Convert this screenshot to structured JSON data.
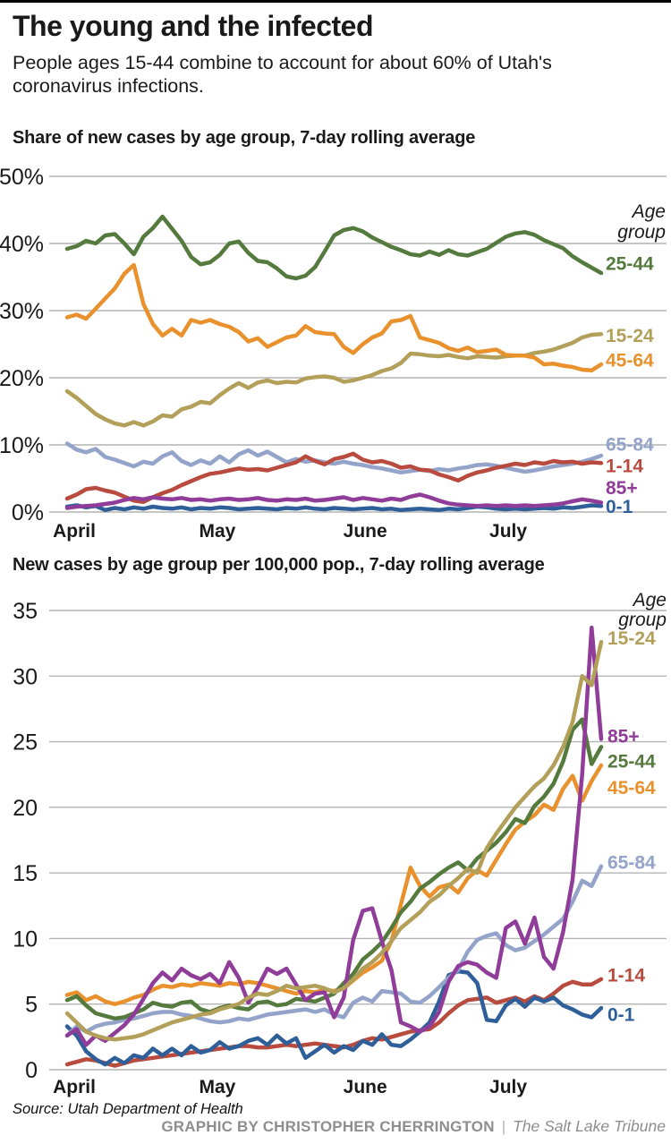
{
  "page": {
    "title": "The young and the infected",
    "subtitle": "People ages 15-44 combine to account for about 60% of Utah's\ncoronavirus infections.",
    "colors": {
      "grid": "#b4b4b4",
      "text": "#1a1a1a",
      "top_rule": "#000000",
      "credit_gray": "#8e8e8e"
    }
  },
  "footer": {
    "source": "Source: Utah Department of Health",
    "credit": "GRAPHIC BY CHRISTOPHER CHERRINGTON",
    "separator": "|",
    "publication": "The Salt Lake Tribune"
  },
  "chart_data": [
    {
      "id": "share",
      "type": "line",
      "title": "Share of new cases by age group, 7-day rolling average",
      "legend_title": "Age group",
      "legend_position": "right",
      "grid": true,
      "ylim": [
        0,
        50
      ],
      "y_ticks": [
        50,
        40,
        30,
        20,
        10,
        0
      ],
      "y_tick_labels": [
        "50%",
        "40%",
        "30%",
        "20%",
        "10%",
        "0%"
      ],
      "x_ticks": [
        "April",
        "May",
        "June",
        "July"
      ],
      "x_tick_days": [
        0,
        30,
        61,
        91
      ],
      "x_total_days": 112,
      "series": [
        {
          "name": "0-1",
          "color": "#2f5f99",
          "label_at": 0.8,
          "values": [
            0.8,
            1.0,
            0.7,
            0.9,
            0.3,
            0.6,
            0.4,
            0.7,
            0.5,
            0.8,
            0.6,
            0.5,
            0.7,
            0.4,
            0.6,
            0.5,
            0.7,
            0.6,
            0.4,
            0.5,
            0.6,
            0.5,
            0.4,
            0.6,
            0.5,
            0.7,
            0.5,
            0.4,
            0.6,
            0.5,
            0.4,
            0.5,
            0.6,
            0.4,
            0.5,
            0.3,
            0.4,
            0.5,
            0.4,
            0.3,
            0.5,
            0.4,
            0.6,
            0.8,
            0.7,
            0.5,
            0.4,
            0.5,
            0.4,
            0.5,
            0.6,
            0.5,
            0.7,
            0.6,
            0.8,
            1.0,
            0.9
          ]
        },
        {
          "name": "65-84",
          "color": "#93a3c9",
          "label_at": 10.1,
          "values": [
            10.2,
            9.3,
            8.9,
            9.4,
            8.2,
            7.8,
            7.3,
            6.8,
            7.5,
            7.2,
            8.3,
            8.9,
            7.6,
            7.0,
            7.7,
            7.2,
            8.3,
            7.4,
            8.6,
            9.2,
            8.4,
            9.0,
            8.2,
            7.4,
            7.9,
            7.5,
            7.7,
            7.4,
            7.2,
            7.5,
            7.2,
            7.0,
            6.7,
            6.5,
            6.2,
            5.9,
            6.1,
            6.3,
            6.1,
            6.4,
            6.2,
            6.5,
            6.7,
            7.0,
            7.1,
            6.9,
            6.6,
            6.3,
            6.0,
            6.2,
            6.5,
            6.8,
            7.0,
            7.2,
            7.5,
            7.9,
            8.4
          ]
        },
        {
          "name": "1-14",
          "color": "#b84a3e",
          "label_at": 6.9,
          "values": [
            2.0,
            2.6,
            3.4,
            3.6,
            3.2,
            2.9,
            2.3,
            1.7,
            1.5,
            2.2,
            2.8,
            3.3,
            4.0,
            4.6,
            5.2,
            5.7,
            5.9,
            6.2,
            6.5,
            6.3,
            6.4,
            6.2,
            6.6,
            7.0,
            7.4,
            8.3,
            7.6,
            7.1,
            7.9,
            8.2,
            8.7,
            7.8,
            7.4,
            7.6,
            7.2,
            6.6,
            6.8,
            6.3,
            6.2,
            5.6,
            5.2,
            4.7,
            5.4,
            5.9,
            6.2,
            6.6,
            6.9,
            7.2,
            7.0,
            7.4,
            7.2,
            7.6,
            7.4,
            7.5,
            7.2,
            7.4,
            7.3
          ]
        },
        {
          "name": "85+",
          "color": "#903d9a",
          "label_at": 3.6,
          "values": [
            0.6,
            0.8,
            0.9,
            1.0,
            1.2,
            1.4,
            1.8,
            2.1,
            1.9,
            2.2,
            2.0,
            1.9,
            2.1,
            1.8,
            1.9,
            1.7,
            1.9,
            2.0,
            1.8,
            1.9,
            2.1,
            1.8,
            1.7,
            1.9,
            1.8,
            2.0,
            1.7,
            1.8,
            2.0,
            2.2,
            1.8,
            2.1,
            1.9,
            1.7,
            2.0,
            1.8,
            2.3,
            2.6,
            2.2,
            1.7,
            1.3,
            1.1,
            1.0,
            0.9,
            1.0,
            0.9,
            1.0,
            0.9,
            1.0,
            0.9,
            1.0,
            1.1,
            1.3,
            1.6,
            1.9,
            1.7,
            1.4
          ]
        },
        {
          "name": "15-24",
          "color": "#b2a05a",
          "label_at": 26.3,
          "values": [
            18.0,
            17.0,
            15.8,
            14.6,
            13.8,
            13.2,
            12.9,
            13.4,
            12.9,
            13.5,
            14.4,
            14.2,
            15.3,
            15.7,
            16.4,
            16.2,
            17.4,
            18.4,
            19.2,
            18.5,
            19.3,
            19.6,
            19.2,
            19.4,
            19.3,
            19.9,
            20.1,
            20.2,
            20.0,
            19.4,
            19.6,
            20.0,
            20.4,
            21.0,
            21.4,
            22.2,
            23.6,
            23.5,
            23.3,
            23.2,
            23.4,
            23.1,
            22.9,
            23.2,
            23.1,
            23.0,
            23.2,
            23.3,
            23.3,
            23.7,
            23.9,
            24.2,
            24.7,
            25.2,
            26.0,
            26.4,
            26.5
          ]
        },
        {
          "name": "45-64",
          "color": "#e8912d",
          "label_at": 22.6,
          "values": [
            29.0,
            29.4,
            28.8,
            30.3,
            31.8,
            33.3,
            35.5,
            36.8,
            31.0,
            28.0,
            26.3,
            27.3,
            26.3,
            28.6,
            28.2,
            28.6,
            28.0,
            27.6,
            26.8,
            25.4,
            25.9,
            24.6,
            25.3,
            26.0,
            26.3,
            27.7,
            26.8,
            26.6,
            26.5,
            24.6,
            23.7,
            25.0,
            26.0,
            26.6,
            28.4,
            28.6,
            29.2,
            26.0,
            25.6,
            25.2,
            24.4,
            24.0,
            24.5,
            23.8,
            24.0,
            24.2,
            23.4,
            23.3,
            23.3,
            23.0,
            22.0,
            22.1,
            21.8,
            21.6,
            21.2,
            21.1,
            22.0
          ]
        },
        {
          "name": "25-44",
          "color": "#557a3e",
          "label_at": 37.0,
          "values": [
            39.2,
            39.6,
            40.4,
            40.0,
            41.2,
            41.4,
            40.0,
            38.4,
            41.0,
            42.3,
            44.0,
            42.2,
            40.4,
            38.0,
            36.9,
            37.2,
            38.3,
            40.0,
            40.3,
            38.6,
            37.4,
            37.2,
            36.3,
            35.1,
            34.8,
            35.2,
            36.5,
            38.8,
            41.2,
            42.0,
            42.3,
            41.8,
            40.9,
            40.2,
            39.5,
            39.0,
            38.4,
            38.2,
            38.8,
            38.3,
            39.0,
            38.4,
            38.2,
            38.7,
            39.2,
            40.1,
            41.0,
            41.5,
            41.7,
            41.3,
            40.5,
            39.9,
            39.3,
            38.1,
            37.2,
            36.4,
            35.6
          ]
        }
      ]
    },
    {
      "id": "rate",
      "type": "line",
      "title": "New cases by age group per 100,000 pop., 7-day rolling average",
      "legend_title": "Age group",
      "legend_position": "right",
      "grid": true,
      "ylim": [
        0,
        35
      ],
      "y_ticks": [
        35,
        30,
        25,
        20,
        15,
        10,
        5,
        0
      ],
      "y_tick_labels": [
        "35",
        "30",
        "25",
        "20",
        "15",
        "10",
        "5",
        "0"
      ],
      "x_ticks": [
        "April",
        "May",
        "June",
        "July"
      ],
      "x_tick_days": [
        0,
        30,
        61,
        91
      ],
      "x_total_days": 112,
      "series": [
        {
          "name": "1-14",
          "color": "#b84a3e",
          "label_at": 7.2,
          "values": [
            0.4,
            0.6,
            0.8,
            0.7,
            0.5,
            0.3,
            0.5,
            0.7,
            0.8,
            0.9,
            1.0,
            1.1,
            1.2,
            1.3,
            1.4,
            1.5,
            1.6,
            1.7,
            1.8,
            1.8,
            1.7,
            1.7,
            1.8,
            1.9,
            1.8,
            1.9,
            2.0,
            1.9,
            1.8,
            1.7,
            1.9,
            2.2,
            2.4,
            2.3,
            2.5,
            2.7,
            2.9,
            3.0,
            3.1,
            3.6,
            4.3,
            4.9,
            5.3,
            5.4,
            5.5,
            5.1,
            5.3,
            5.5,
            5.2,
            5.6,
            5.3,
            5.8,
            6.4,
            6.7,
            6.5,
            6.5,
            6.9
          ]
        },
        {
          "name": "0-1",
          "color": "#2f5f99",
          "label_at": 4.2,
          "values": [
            3.3,
            2.6,
            1.4,
            0.8,
            0.4,
            0.9,
            0.5,
            1.1,
            0.9,
            1.6,
            1.1,
            1.6,
            1.1,
            1.8,
            1.3,
            1.5,
            2.1,
            1.6,
            1.8,
            2.2,
            2.4,
            1.9,
            2.6,
            2.0,
            2.4,
            0.9,
            1.4,
            1.9,
            1.3,
            1.8,
            1.5,
            2.2,
            1.9,
            2.7,
            1.9,
            1.8,
            2.3,
            2.9,
            3.6,
            5.2,
            7.2,
            7.5,
            7.4,
            6.6,
            3.8,
            3.7,
            4.9,
            5.4,
            4.8,
            5.5,
            5.2,
            5.5,
            4.9,
            4.6,
            4.2,
            4.0,
            4.7
          ]
        },
        {
          "name": "65-84",
          "color": "#93a3c9",
          "label_at": 15.8,
          "values": [
            2.6,
            3.3,
            2.9,
            3.3,
            3.5,
            3.6,
            3.8,
            3.9,
            4.1,
            4.3,
            4.4,
            4.4,
            4.2,
            4.1,
            3.9,
            3.7,
            3.6,
            3.7,
            3.9,
            3.8,
            4.0,
            4.2,
            4.3,
            4.4,
            4.5,
            4.6,
            4.4,
            4.6,
            4.2,
            4.0,
            5.1,
            5.5,
            5.2,
            6.0,
            5.9,
            5.8,
            5.2,
            5.1,
            5.6,
            6.3,
            7.0,
            7.6,
            9.0,
            9.9,
            10.2,
            10.4,
            9.5,
            9.1,
            9.3,
            9.8,
            10.3,
            10.9,
            11.5,
            12.8,
            14.4,
            14.0,
            15.5
          ]
        },
        {
          "name": "45-64",
          "color": "#e8912d",
          "label_at": 21.5,
          "values": [
            5.7,
            5.9,
            5.3,
            5.6,
            5.2,
            5.0,
            5.2,
            5.5,
            5.7,
            6.1,
            6.4,
            6.3,
            6.5,
            6.4,
            6.6,
            6.5,
            6.4,
            6.6,
            6.5,
            6.7,
            6.6,
            6.4,
            6.2,
            6.0,
            5.8,
            6.0,
            5.9,
            6.1,
            6.0,
            6.2,
            6.8,
            7.4,
            7.8,
            8.3,
            9.8,
            12.6,
            15.4,
            14.0,
            13.2,
            13.9,
            14.1,
            13.5,
            14.6,
            15.2,
            14.8,
            16.0,
            17.2,
            18.3,
            18.9,
            19.4,
            20.2,
            19.8,
            21.4,
            22.4,
            20.5,
            22.0,
            23.2
          ]
        },
        {
          "name": "25-44",
          "color": "#557a3e",
          "label_at": 23.5,
          "values": [
            5.3,
            5.6,
            4.9,
            4.3,
            4.1,
            3.9,
            4.0,
            4.3,
            4.6,
            5.1,
            4.9,
            4.8,
            5.1,
            5.2,
            4.6,
            4.4,
            4.7,
            4.9,
            4.7,
            4.6,
            5.1,
            5.2,
            4.9,
            5.0,
            5.4,
            5.3,
            5.2,
            5.5,
            5.8,
            6.6,
            7.3,
            8.4,
            9.0,
            9.7,
            10.8,
            12.0,
            12.8,
            13.8,
            14.3,
            14.9,
            15.4,
            15.8,
            15.2,
            16.1,
            16.7,
            17.3,
            18.1,
            19.1,
            18.8,
            20.1,
            20.8,
            21.8,
            23.5,
            25.9,
            26.7,
            23.3,
            24.6
          ]
        },
        {
          "name": "85+",
          "color": "#903d9a",
          "label_at": 25.4,
          "values": [
            2.6,
            3.1,
            1.9,
            2.6,
            2.2,
            2.8,
            3.4,
            4.2,
            5.4,
            6.6,
            7.4,
            6.8,
            7.7,
            7.2,
            6.9,
            7.3,
            6.6,
            8.2,
            7.0,
            5.1,
            6.3,
            7.7,
            7.3,
            7.7,
            6.5,
            5.3,
            5.8,
            5.9,
            4.0,
            5.5,
            9.9,
            12.1,
            12.3,
            9.8,
            7.6,
            3.6,
            3.3,
            2.9,
            3.3,
            4.4,
            6.7,
            7.9,
            8.2,
            8.0,
            7.4,
            7.0,
            10.8,
            11.3,
            9.6,
            11.6,
            8.6,
            7.7,
            10.5,
            14.5,
            22.5,
            33.7,
            25.2
          ]
        },
        {
          "name": "15-24",
          "color": "#b2a05a",
          "label_at": 32.9,
          "values": [
            4.3,
            3.6,
            2.9,
            2.6,
            2.4,
            2.3,
            2.4,
            2.5,
            2.7,
            3.0,
            3.3,
            3.6,
            3.8,
            4.0,
            4.2,
            4.3,
            4.6,
            4.8,
            5.0,
            5.5,
            5.8,
            5.7,
            6.0,
            6.4,
            6.2,
            6.3,
            6.4,
            6.2,
            5.9,
            6.2,
            6.9,
            7.7,
            8.2,
            8.9,
            9.8,
            10.8,
            11.4,
            12.0,
            12.8,
            13.3,
            14.0,
            14.6,
            15.3,
            15.0,
            16.9,
            18.0,
            19.0,
            20.0,
            20.8,
            21.6,
            22.2,
            23.2,
            24.6,
            26.5,
            30.0,
            29.3,
            32.6
          ]
        }
      ]
    }
  ]
}
